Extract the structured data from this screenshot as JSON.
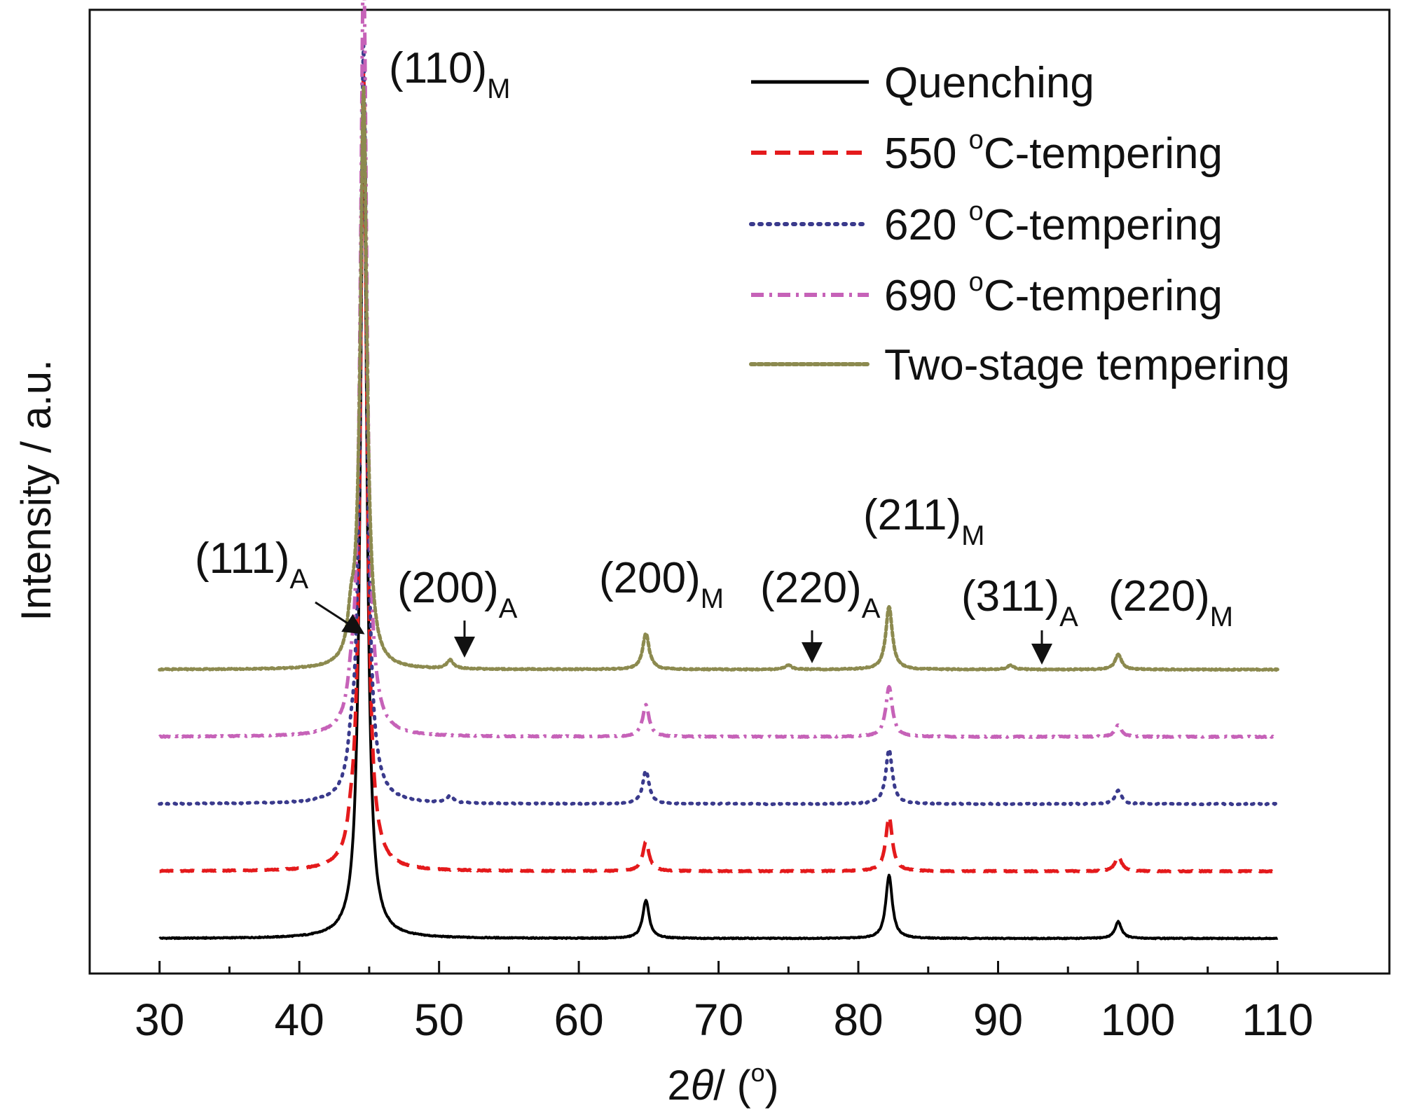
{
  "chart_data": {
    "type": "line",
    "xlabel": "2θ / (°)",
    "xlabel_parts": {
      "prefix": "2",
      "theta": "θ",
      "rest": "/ (",
      "deg": "o",
      "close": ")"
    },
    "ylabel": "Intensity / a.u.",
    "xlim": [
      25,
      118
    ],
    "x_ticks": [
      30,
      40,
      50,
      60,
      70,
      80,
      90,
      100,
      110
    ],
    "x_tick_labels": [
      "30",
      "40",
      "50",
      "60",
      "70",
      "80",
      "90",
      "100",
      "110"
    ],
    "y_ticks_shown": false,
    "grid": false,
    "legend_position": "top-right",
    "x_range_data": [
      30,
      110
    ],
    "series": [
      {
        "name": "Quenching",
        "legend_label": {
          "num": "",
          "deg": "",
          "rest": "Quenching"
        },
        "color": "#000000",
        "dash": "solid",
        "offset": 0,
        "peaks": [
          {
            "x": 44.6,
            "height": 100
          },
          {
            "x": 64.8,
            "height": 4.5
          },
          {
            "x": 82.2,
            "height": 7.5
          },
          {
            "x": 98.6,
            "height": 2.0
          }
        ]
      },
      {
        "name": "550 °C-tempering",
        "legend_label": {
          "num": "550 ",
          "deg": "o",
          "rest": "C-tempering"
        },
        "color": "#e41a1c",
        "dash": "dashed",
        "offset": 8,
        "peaks": [
          {
            "x": 43.7,
            "height": 1.8
          },
          {
            "x": 44.6,
            "height": 95
          },
          {
            "x": 64.8,
            "height": 3.5
          },
          {
            "x": 82.2,
            "height": 6.5
          },
          {
            "x": 98.6,
            "height": 1.8
          }
        ]
      },
      {
        "name": "620 °C-tempering",
        "legend_label": {
          "num": "620 ",
          "deg": "o",
          "rest": "C-tempering"
        },
        "color": "#3a3a8c",
        "dash": "dotted",
        "offset": 16,
        "peaks": [
          {
            "x": 43.7,
            "height": 3.0
          },
          {
            "x": 44.6,
            "height": 90
          },
          {
            "x": 50.8,
            "height": 0.8
          },
          {
            "x": 64.8,
            "height": 4.0
          },
          {
            "x": 82.2,
            "height": 6.5
          },
          {
            "x": 98.6,
            "height": 1.6
          }
        ]
      },
      {
        "name": "690 °C-tempering",
        "legend_label": {
          "num": "690 ",
          "deg": "o",
          "rest": "C-tempering"
        },
        "color": "#c662b8",
        "dash": "dashdot",
        "offset": 24,
        "peaks": [
          {
            "x": 43.7,
            "height": 2.5
          },
          {
            "x": 44.6,
            "height": 92
          },
          {
            "x": 64.8,
            "height": 3.8
          },
          {
            "x": 82.2,
            "height": 6.0
          },
          {
            "x": 98.6,
            "height": 1.4
          }
        ]
      },
      {
        "name": "Two-stage tempering",
        "legend_label": {
          "num": "",
          "deg": "",
          "rest": "Two-stage tempering"
        },
        "color": "#8c8a4f",
        "dash": "dotted-dense",
        "offset": 32,
        "peaks": [
          {
            "x": 43.7,
            "height": 4.0
          },
          {
            "x": 44.6,
            "height": 69
          },
          {
            "x": 50.8,
            "height": 1.0
          },
          {
            "x": 64.8,
            "height": 4.3
          },
          {
            "x": 75.0,
            "height": 0.5
          },
          {
            "x": 82.2,
            "height": 7.5
          },
          {
            "x": 90.9,
            "height": 0.5
          },
          {
            "x": 98.6,
            "height": 1.8
          }
        ]
      }
    ],
    "annotations": [
      {
        "main": "(110)",
        "sub": "M",
        "x": 44.6
      },
      {
        "main": "(111)",
        "sub": "A",
        "x": 43.7,
        "arrow": true
      },
      {
        "main": "(200)",
        "sub": "A",
        "x": 50.8,
        "arrow": true
      },
      {
        "main": "(200)",
        "sub": "M",
        "x": 64.8
      },
      {
        "main": "(220)",
        "sub": "A",
        "x": 75.0,
        "arrow": true
      },
      {
        "main": "(211)",
        "sub": "M",
        "x": 82.2
      },
      {
        "main": "(311)",
        "sub": "A",
        "x": 90.9,
        "arrow": true
      },
      {
        "main": "(220)",
        "sub": "M",
        "x": 98.6
      }
    ]
  }
}
